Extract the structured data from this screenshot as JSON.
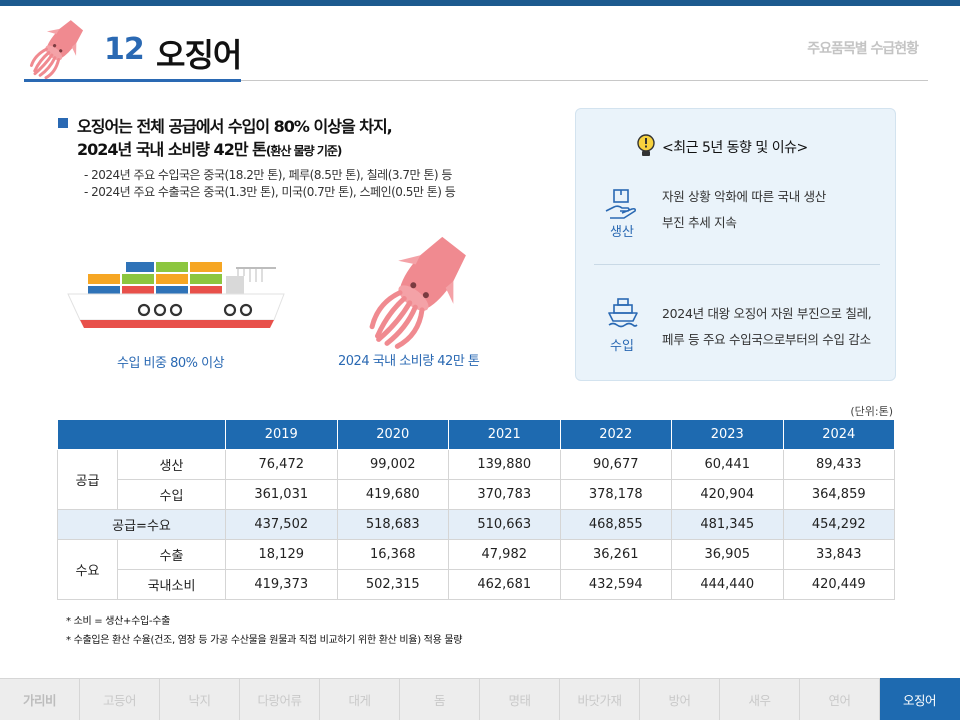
{
  "header": {
    "number": "12",
    "title": "오징어",
    "section_label": "주요품목별 수급현황"
  },
  "summary": {
    "headline_line1": "오징어는 전체 공급에서 수입이 80% 이상을 차지,",
    "headline_line2": "2024년 국내 소비량 42만 톤",
    "headline_line2_small": "(환산 물량 기준)",
    "sub_line1": "- 2024년 주요 수입국은 중국(18.2만 톤), 페루(8.5만 톤), 칠레(3.7만 톤) 등",
    "sub_line2": "- 2024년 주요 수출국은 중국(1.3만 톤), 미국(0.7만 톤), 스페인(0.5만 톤) 등"
  },
  "illustrations": {
    "ship_caption": "수입 비중 80% 이상",
    "squid_caption": "2024 국내 소비량 42만 톤"
  },
  "panel": {
    "title": "<최근 5년 동향 및 이슈>",
    "items": [
      {
        "label": "생산",
        "icon": "hand-with-box-icon",
        "line1": "자원 상황 악화에 따른 국내 생산",
        "line2": "부진 추세 지속"
      },
      {
        "label": "수입",
        "icon": "ship-icon",
        "line1": "2024년 대왕 오징어 자원 부진으로 칠레,",
        "line2": "페루 등 주요 수입국으로부터의 수입 감소"
      }
    ]
  },
  "table": {
    "unit": "(단위:톤)",
    "years": [
      "2019",
      "2020",
      "2021",
      "2022",
      "2023",
      "2024"
    ],
    "groups": {
      "supply": "공급",
      "demand": "수요"
    },
    "rows": {
      "production": {
        "label": "생산",
        "values": [
          "76,472",
          "99,002",
          "139,880",
          "90,677",
          "60,441",
          "89,433"
        ]
      },
      "imports": {
        "label": "수입",
        "values": [
          "361,031",
          "419,680",
          "370,783",
          "378,178",
          "420,904",
          "364,859"
        ]
      },
      "balance": {
        "label": "공급=수요",
        "values": [
          "437,502",
          "518,683",
          "510,663",
          "468,855",
          "481,345",
          "454,292"
        ]
      },
      "exports": {
        "label": "수출",
        "values": [
          "18,129",
          "16,368",
          "47,982",
          "36,261",
          "36,905",
          "33,843"
        ]
      },
      "consumption": {
        "label": "국내소비",
        "values": [
          "419,373",
          "502,315",
          "462,681",
          "432,594",
          "444,440",
          "420,449"
        ]
      }
    }
  },
  "notes": {
    "note1": "* 소비 = 생산+수입-수출",
    "note2": "* 수출입은 환산 수율(건조, 염장 등 가공 수산물을 원물과 직접 비교하기 위한 환산 비율) 적용 물량"
  },
  "tabs": [
    "가리비",
    "고등어",
    "낙지",
    "다랑어류",
    "대게",
    "돔",
    "명태",
    "바닷가재",
    "방어",
    "새우",
    "연어",
    "오징어"
  ],
  "active_tab": "오징어",
  "colors": {
    "accent": "#2a69b3",
    "table_header": "#1e6ab0",
    "panel_bg": "#eaf3fa",
    "squid": "#f08a90"
  }
}
